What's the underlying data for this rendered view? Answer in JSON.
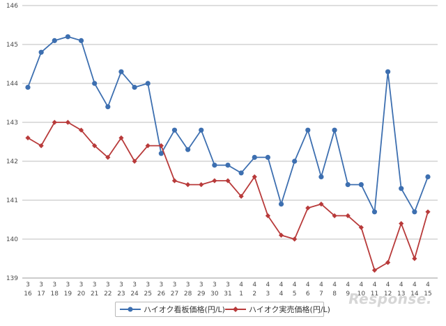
{
  "chart_data": {
    "type": "line",
    "categories": [
      [
        "3",
        "16"
      ],
      [
        "3",
        "17"
      ],
      [
        "3",
        "18"
      ],
      [
        "3",
        "19"
      ],
      [
        "3",
        "20"
      ],
      [
        "3",
        "21"
      ],
      [
        "3",
        "22"
      ],
      [
        "3",
        "23"
      ],
      [
        "3",
        "24"
      ],
      [
        "3",
        "25"
      ],
      [
        "3",
        "26"
      ],
      [
        "3",
        "27"
      ],
      [
        "3",
        "28"
      ],
      [
        "3",
        "29"
      ],
      [
        "3",
        "30"
      ],
      [
        "3",
        "31"
      ],
      [
        "4",
        "1"
      ],
      [
        "4",
        "2"
      ],
      [
        "4",
        "3"
      ],
      [
        "4",
        "4"
      ],
      [
        "4",
        "5"
      ],
      [
        "4",
        "6"
      ],
      [
        "4",
        "7"
      ],
      [
        "4",
        "8"
      ],
      [
        "4",
        "9"
      ],
      [
        "4",
        "10"
      ],
      [
        "4",
        "11"
      ],
      [
        "4",
        "12"
      ],
      [
        "4",
        "13"
      ],
      [
        "4",
        "14"
      ],
      [
        "4",
        "15"
      ]
    ],
    "series": [
      {
        "name": "ハイオク看板価格(円/L)",
        "color": "#3d6fb0",
        "marker": "circle",
        "values": [
          143.9,
          144.8,
          145.1,
          145.2,
          145.1,
          144.0,
          143.4,
          144.3,
          143.9,
          144.0,
          142.2,
          142.8,
          142.3,
          142.8,
          141.9,
          141.9,
          141.7,
          142.1,
          142.1,
          140.9,
          142.0,
          142.8,
          141.6,
          142.8,
          141.4,
          141.4,
          140.7,
          144.3,
          141.3,
          140.7,
          141.6
        ]
      },
      {
        "name": "ハイオク実売価格(円/L)",
        "color": "#b83a3a",
        "marker": "diamond",
        "values": [
          142.6,
          142.4,
          143.0,
          143.0,
          142.8,
          142.4,
          142.1,
          142.6,
          142.0,
          142.4,
          142.4,
          141.5,
          141.4,
          141.4,
          141.5,
          141.5,
          141.1,
          141.6,
          140.6,
          140.1,
          140.0,
          140.8,
          140.9,
          140.6,
          140.6,
          140.3,
          139.2,
          139.4,
          140.4,
          139.5,
          140.7
        ]
      }
    ],
    "ylim": [
      139,
      146
    ],
    "yticks": [
      "139",
      "140",
      "141",
      "142",
      "143",
      "144",
      "145",
      "146"
    ],
    "grid": true,
    "legend": "bottom",
    "title": "",
    "xlabel": "",
    "ylabel": ""
  },
  "watermark": "Response."
}
